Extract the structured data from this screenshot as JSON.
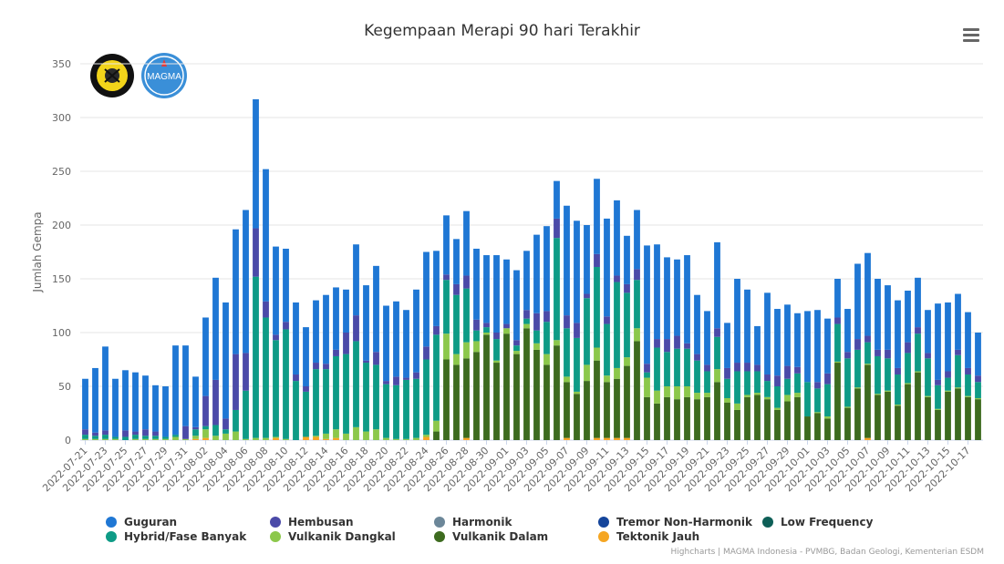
{
  "colors": {
    "Guguran": "#1f77d4",
    "Hembusan": "#4b4aa8",
    "Harmonik": "#6c8799",
    "Tremor Non-Harmonik": "#15459b",
    "Low Frequency": "#0e5f57",
    "Hybrid/Fase Banyak": "#0e9b86",
    "Vulkanik Dangkal": "#8cc84b",
    "Vulkanik Dalam": "#3d6b1f",
    "Tektonik Jauh": "#f5a623"
  },
  "header": {
    "title": "Kegempaan Merapi 90 hari Terakhir",
    "menu_icon": "hamburger-menu-icon"
  },
  "credits": "Highcharts | MAGMA Indonesia - PVMBG, Badan Geologi, Kementerian ESDM",
  "logos": {
    "left": "esdm-logo",
    "right": "magma-indonesia-logo",
    "right_text": "MAGMA"
  },
  "chart_data": {
    "type": "bar",
    "stacked": true,
    "title": "Kegempaan Merapi 90 hari Terakhir",
    "ylabel": "Jumlah Gempa",
    "ylim": [
      0,
      350
    ],
    "yticks": [
      0,
      50,
      100,
      150,
      200,
      250,
      300,
      350
    ],
    "grid": true,
    "legend_position": "bottom",
    "x_tick_labels": [
      "2022-07-21",
      "2022-07-23",
      "2022-07-25",
      "2022-07-27",
      "2022-07-29",
      "2022-07-31",
      "2022-08-02",
      "2022-08-04",
      "2022-08-06",
      "2022-08-08",
      "2022-08-10",
      "2022-08-12",
      "2022-08-14",
      "2022-08-16",
      "2022-08-18",
      "2022-08-20",
      "2022-08-22",
      "2022-08-24",
      "2022-08-26",
      "2022-08-28",
      "2022-08-30",
      "2022-09-01",
      "2022-09-03",
      "2022-09-05",
      "2022-09-07",
      "2022-09-09",
      "2022-09-11",
      "2022-09-13",
      "2022-09-15",
      "2022-09-17",
      "2022-09-19",
      "2022-09-21",
      "2022-09-23",
      "2022-09-25",
      "2022-09-27",
      "2022-09-29",
      "2022-10-01",
      "2022-10-03",
      "2022-10-05",
      "2022-10-07",
      "2022-10-09",
      "2022-10-11",
      "2022-10-13",
      "2022-10-15",
      "2022-10-17"
    ],
    "categories": [
      "2022-07-21",
      "2022-07-22",
      "2022-07-23",
      "2022-07-24",
      "2022-07-25",
      "2022-07-26",
      "2022-07-27",
      "2022-07-28",
      "2022-07-29",
      "2022-07-30",
      "2022-07-31",
      "2022-08-01",
      "2022-08-02",
      "2022-08-03",
      "2022-08-04",
      "2022-08-05",
      "2022-08-06",
      "2022-08-07",
      "2022-08-08",
      "2022-08-09",
      "2022-08-10",
      "2022-08-11",
      "2022-08-12",
      "2022-08-13",
      "2022-08-14",
      "2022-08-15",
      "2022-08-16",
      "2022-08-17",
      "2022-08-18",
      "2022-08-19",
      "2022-08-20",
      "2022-08-21",
      "2022-08-22",
      "2022-08-23",
      "2022-08-24",
      "2022-08-25",
      "2022-08-26",
      "2022-08-27",
      "2022-08-28",
      "2022-08-29",
      "2022-08-30",
      "2022-08-31",
      "2022-09-01",
      "2022-09-02",
      "2022-09-03",
      "2022-09-04",
      "2022-09-05",
      "2022-09-06",
      "2022-09-07",
      "2022-09-08",
      "2022-09-09",
      "2022-09-10",
      "2022-09-11",
      "2022-09-12",
      "2022-09-13",
      "2022-09-14",
      "2022-09-15",
      "2022-09-16",
      "2022-09-17",
      "2022-09-18",
      "2022-09-19",
      "2022-09-20",
      "2022-09-21",
      "2022-09-22",
      "2022-09-23",
      "2022-09-24",
      "2022-09-25",
      "2022-09-26",
      "2022-09-27",
      "2022-09-28",
      "2022-09-29",
      "2022-09-30",
      "2022-10-01",
      "2022-10-02",
      "2022-10-03",
      "2022-10-04",
      "2022-10-05",
      "2022-10-06",
      "2022-10-07",
      "2022-10-08",
      "2022-10-09",
      "2022-10-10",
      "2022-10-11",
      "2022-10-12",
      "2022-10-13",
      "2022-10-14",
      "2022-10-15",
      "2022-10-16",
      "2022-10-17",
      "2022-10-18"
    ],
    "series": [
      {
        "name": "Tektonik Jauh",
        "values": [
          0,
          0,
          0,
          0,
          0,
          0,
          0,
          0,
          0,
          0,
          0,
          1,
          2,
          0,
          0,
          0,
          0,
          0,
          0,
          2,
          0,
          0,
          3,
          3,
          1,
          2,
          0,
          0,
          0,
          0,
          0,
          0,
          0,
          0,
          3,
          0,
          0,
          0,
          2,
          0,
          0,
          0,
          0,
          0,
          0,
          0,
          0,
          0,
          2,
          0,
          0,
          2,
          2,
          2,
          2,
          0,
          0,
          0,
          0,
          0,
          0,
          0,
          0,
          0,
          0,
          0,
          0,
          0,
          0,
          0,
          0,
          0,
          0,
          0,
          0,
          0,
          0,
          0,
          2,
          0,
          0,
          0,
          0,
          0,
          0,
          0,
          0,
          0,
          0,
          0
        ]
      },
      {
        "name": "Vulkanik Dalam",
        "values": [
          0,
          0,
          0,
          0,
          0,
          0,
          0,
          0,
          0,
          0,
          0,
          0,
          0,
          0,
          0,
          0,
          0,
          0,
          0,
          0,
          0,
          0,
          0,
          0,
          0,
          0,
          0,
          0,
          0,
          0,
          0,
          0,
          0,
          0,
          0,
          8,
          75,
          70,
          74,
          82,
          98,
          72,
          99,
          80,
          104,
          84,
          70,
          88,
          52,
          43,
          55,
          72,
          52,
          55,
          67,
          92,
          40,
          34,
          40,
          38,
          40,
          38,
          40,
          54,
          35,
          28,
          40,
          42,
          38,
          28,
          36,
          40,
          22,
          25,
          20,
          72,
          30,
          48,
          68,
          42,
          45,
          32,
          52,
          63,
          40,
          28,
          45,
          48,
          40,
          38
        ]
      },
      {
        "name": "Vulkanik Dangkal",
        "values": [
          1,
          1,
          1,
          1,
          0,
          1,
          1,
          1,
          1,
          3,
          1,
          3,
          8,
          4,
          6,
          8,
          1,
          2,
          2,
          1,
          1,
          0,
          0,
          1,
          5,
          8,
          6,
          12,
          8,
          10,
          2,
          1,
          1,
          2,
          2,
          10,
          24,
          10,
          15,
          10,
          2,
          2,
          5,
          3,
          4,
          6,
          10,
          5,
          5,
          2,
          15,
          12,
          6,
          10,
          8,
          12,
          18,
          12,
          10,
          12,
          10,
          6,
          4,
          12,
          4,
          6,
          2,
          2,
          2,
          2,
          6,
          4,
          0,
          1,
          2,
          1,
          1,
          1,
          1,
          1,
          1,
          1,
          1,
          1,
          1,
          1,
          1,
          1,
          1,
          1
        ]
      },
      {
        "name": "Hybrid/Fase Banyak",
        "values": [
          4,
          3,
          4,
          2,
          3,
          4,
          3,
          3,
          2,
          2,
          0,
          6,
          3,
          10,
          4,
          20,
          45,
          150,
          112,
          90,
          102,
          55,
          42,
          62,
          60,
          68,
          74,
          80,
          64,
          60,
          50,
          50,
          55,
          55,
          70,
          80,
          50,
          55,
          50,
          10,
          5,
          20,
          0,
          5,
          5,
          12,
          30,
          95,
          45,
          50,
          62,
          75,
          48,
          80,
          60,
          45,
          5,
          40,
          32,
          35,
          35,
          30,
          20,
          30,
          18,
          30,
          22,
          20,
          15,
          20,
          15,
          18,
          32,
          22,
          30,
          35,
          45,
          35,
          20,
          35,
          30,
          28,
          28,
          35,
          35,
          22,
          12,
          30,
          20,
          15
        ]
      },
      {
        "name": "Low Frequency",
        "values": [
          0,
          0,
          0,
          0,
          0,
          0,
          0,
          0,
          0,
          0,
          0,
          0,
          0,
          0,
          0,
          0,
          0,
          0,
          0,
          0,
          0,
          0,
          0,
          0,
          0,
          0,
          0,
          0,
          0,
          0,
          0,
          0,
          0,
          0,
          0,
          0,
          0,
          0,
          0,
          0,
          0,
          0,
          0,
          0,
          0,
          0,
          0,
          0,
          0,
          0,
          0,
          0,
          0,
          0,
          0,
          0,
          0,
          0,
          0,
          0,
          0,
          0,
          0,
          0,
          0,
          0,
          0,
          0,
          0,
          0,
          0,
          0,
          0,
          0,
          0,
          0,
          0,
          0,
          0,
          0,
          0,
          0,
          0,
          0,
          0,
          0,
          0,
          0,
          0,
          0
        ]
      },
      {
        "name": "Tremor Non-Harmonik",
        "values": [
          0,
          0,
          0,
          0,
          0,
          0,
          0,
          0,
          0,
          0,
          0,
          0,
          0,
          0,
          0,
          0,
          0,
          0,
          0,
          0,
          0,
          0,
          0,
          0,
          0,
          0,
          0,
          0,
          0,
          0,
          0,
          0,
          0,
          0,
          0,
          0,
          0,
          0,
          0,
          0,
          0,
          0,
          0,
          0,
          0,
          0,
          0,
          0,
          0,
          0,
          0,
          0,
          0,
          0,
          0,
          0,
          0,
          0,
          0,
          0,
          0,
          0,
          0,
          0,
          0,
          0,
          0,
          0,
          0,
          0,
          0,
          0,
          0,
          0,
          0,
          0,
          0,
          0,
          0,
          0,
          0,
          0,
          0,
          0,
          0,
          0,
          0,
          0,
          0,
          0
        ]
      },
      {
        "name": "Harmonik",
        "values": [
          0,
          0,
          0,
          0,
          0,
          0,
          0,
          0,
          0,
          0,
          0,
          0,
          0,
          0,
          0,
          0,
          0,
          0,
          0,
          0,
          0,
          0,
          0,
          0,
          0,
          0,
          0,
          0,
          0,
          0,
          0,
          0,
          0,
          0,
          0,
          0,
          0,
          0,
          0,
          0,
          0,
          0,
          0,
          0,
          0,
          0,
          0,
          0,
          0,
          0,
          0,
          0,
          0,
          0,
          0,
          0,
          0,
          0,
          0,
          0,
          0,
          0,
          0,
          0,
          0,
          0,
          0,
          0,
          0,
          0,
          0,
          0,
          0,
          0,
          0,
          0,
          0,
          0,
          0,
          0,
          0,
          0,
          0,
          0,
          0,
          0,
          0,
          0,
          0,
          0
        ]
      },
      {
        "name": "Hembusan",
        "values": [
          5,
          3,
          4,
          0,
          6,
          3,
          6,
          4,
          0,
          0,
          12,
          2,
          28,
          42,
          10,
          52,
          35,
          45,
          15,
          5,
          7,
          6,
          5,
          6,
          5,
          6,
          20,
          24,
          2,
          12,
          3,
          8,
          2,
          6,
          12,
          8,
          5,
          10,
          12,
          10,
          4,
          6,
          4,
          5,
          8,
          16,
          10,
          18,
          12,
          14,
          4,
          12,
          7,
          6,
          8,
          10,
          8,
          8,
          12,
          12,
          5,
          6,
          6,
          8,
          10,
          8,
          8,
          6,
          6,
          10,
          12,
          6,
          0,
          6,
          10,
          6,
          6,
          10,
          6,
          6,
          8,
          6,
          10,
          6,
          5,
          5,
          6,
          5,
          6,
          6
        ]
      },
      {
        "name": "Guguran",
        "values": [
          47,
          60,
          78,
          54,
          56,
          55,
          50,
          43,
          47,
          83,
          75,
          47,
          73,
          95,
          108,
          116,
          133,
          120,
          123,
          82,
          68,
          67,
          55,
          58,
          64,
          58,
          40,
          66,
          70,
          80,
          70,
          70,
          63,
          77,
          88,
          70,
          55,
          42,
          60,
          66,
          63,
          72,
          60,
          65,
          55,
          73,
          79,
          35,
          102,
          95,
          64,
          70,
          91,
          70,
          45,
          55,
          110,
          88,
          76,
          71,
          82,
          55,
          50,
          80,
          42,
          78,
          68,
          36,
          76,
          62,
          57,
          50,
          66,
          67,
          51,
          36,
          40,
          70,
          77,
          66,
          60,
          63,
          48,
          46,
          40,
          71,
          64,
          52,
          52,
          40
        ]
      }
    ]
  },
  "legend": [
    {
      "label": "Guguran"
    },
    {
      "label": "Hembusan"
    },
    {
      "label": "Harmonik"
    },
    {
      "label": "Tremor Non-Harmonik"
    },
    {
      "label": "Low Frequency"
    },
    {
      "label": "Hybrid/Fase Banyak"
    },
    {
      "label": "Vulkanik Dangkal"
    },
    {
      "label": "Vulkanik Dalam"
    },
    {
      "label": "Tektonik Jauh"
    }
  ]
}
